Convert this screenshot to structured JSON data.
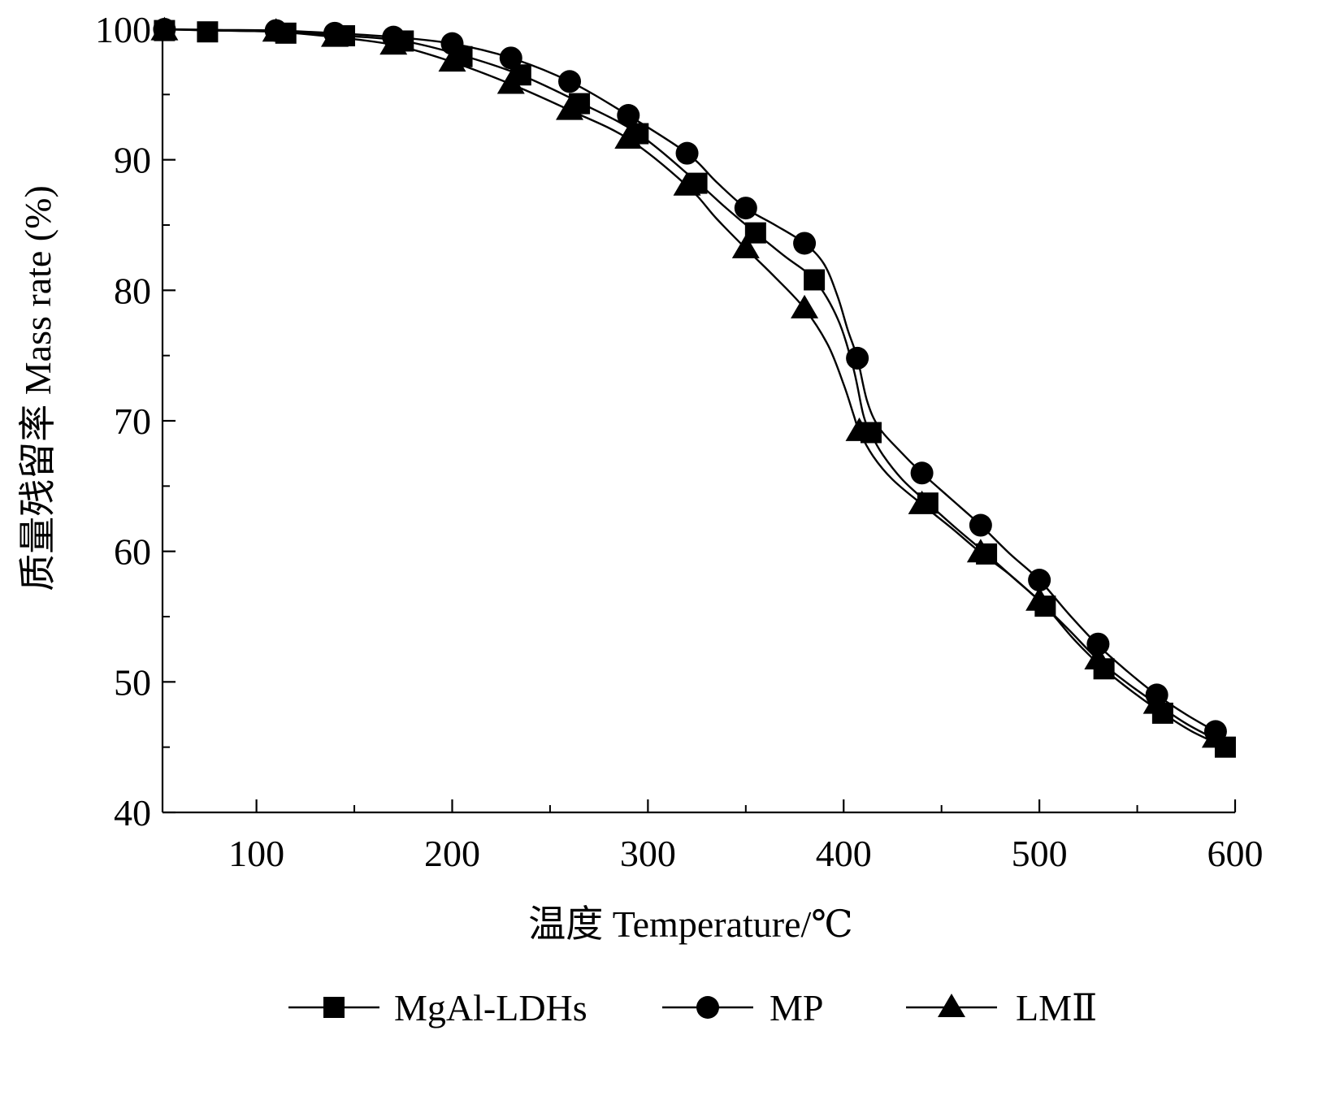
{
  "chart_data": {
    "type": "line",
    "title": "",
    "xlabel": "温度 Temperature/℃",
    "ylabel": "质量残留率 Mass rate (%)",
    "xlim": [
      52,
      600
    ],
    "ylim": [
      40,
      100
    ],
    "x_ticks": [
      100,
      200,
      300,
      400,
      500,
      600
    ],
    "x_tick_labels": [
      "100",
      "200",
      "300",
      "400",
      "500",
      "600"
    ],
    "x_minor_ticks": [
      150,
      250,
      350,
      450,
      550
    ],
    "y_ticks": [
      40,
      50,
      60,
      70,
      80,
      90,
      100
    ],
    "y_tick_labels": [
      "40",
      "50",
      "60",
      "70",
      "80",
      "90",
      "100"
    ],
    "y_minor_ticks": [
      45,
      55,
      65,
      75,
      85,
      95
    ],
    "grid": false,
    "legend_position": "bottom",
    "series": [
      {
        "name": "MgAl-LDHs",
        "marker": "square",
        "color": "#000000",
        "line": [
          [
            52,
            100
          ],
          [
            80,
            99.9
          ],
          [
            115,
            99.8
          ],
          [
            145,
            99.5
          ],
          [
            175,
            99.1
          ],
          [
            205,
            98.0
          ],
          [
            235,
            96.5
          ],
          [
            265,
            94.4
          ],
          [
            295,
            92.0
          ],
          [
            325,
            88.3
          ],
          [
            340,
            86.3
          ],
          [
            355,
            84.4
          ],
          [
            370,
            82.6
          ],
          [
            385,
            80.8
          ],
          [
            397,
            77.8
          ],
          [
            405,
            74.0
          ],
          [
            410,
            70.5
          ],
          [
            414,
            69.0
          ],
          [
            420,
            67.4
          ],
          [
            430,
            65.5
          ],
          [
            443,
            63.7
          ],
          [
            458,
            61.7
          ],
          [
            473,
            59.8
          ],
          [
            488,
            57.8
          ],
          [
            503,
            55.8
          ],
          [
            518,
            53.2
          ],
          [
            533,
            51.0
          ],
          [
            548,
            49.2
          ],
          [
            563,
            47.6
          ],
          [
            578,
            46.2
          ],
          [
            595,
            45.0
          ]
        ],
        "markers": [
          [
            53,
            99.9
          ],
          [
            75,
            99.8
          ],
          [
            115,
            99.7
          ],
          [
            145,
            99.5
          ],
          [
            175,
            99.1
          ],
          [
            205,
            97.9
          ],
          [
            235,
            96.5
          ],
          [
            265,
            94.3
          ],
          [
            295,
            92.0
          ],
          [
            325,
            88.2
          ],
          [
            355,
            84.4
          ],
          [
            385,
            80.8
          ],
          [
            414,
            69.1
          ],
          [
            443,
            63.7
          ],
          [
            473,
            59.8
          ],
          [
            503,
            55.8
          ],
          [
            533,
            51.0
          ],
          [
            563,
            47.6
          ],
          [
            595,
            45.0
          ]
        ]
      },
      {
        "name": "MP",
        "marker": "circle",
        "color": "#000000",
        "line": [
          [
            52,
            100
          ],
          [
            80,
            99.95
          ],
          [
            110,
            99.9
          ],
          [
            140,
            99.7
          ],
          [
            170,
            99.4
          ],
          [
            200,
            98.9
          ],
          [
            230,
            97.8
          ],
          [
            260,
            96.0
          ],
          [
            290,
            93.4
          ],
          [
            320,
            90.5
          ],
          [
            335,
            88.3
          ],
          [
            350,
            86.3
          ],
          [
            365,
            85.0
          ],
          [
            380,
            83.6
          ],
          [
            390,
            82.0
          ],
          [
            397,
            79.5
          ],
          [
            402,
            77.0
          ],
          [
            407,
            74.8
          ],
          [
            412,
            71.5
          ],
          [
            418,
            69.5
          ],
          [
            428,
            67.8
          ],
          [
            440,
            66.0
          ],
          [
            455,
            64.0
          ],
          [
            470,
            62.0
          ],
          [
            485,
            59.8
          ],
          [
            500,
            57.8
          ],
          [
            515,
            55.2
          ],
          [
            530,
            52.8
          ],
          [
            545,
            50.8
          ],
          [
            560,
            49.0
          ],
          [
            575,
            47.5
          ],
          [
            590,
            46.2
          ],
          [
            595,
            45.8
          ]
        ],
        "markers": [
          [
            53,
            100
          ],
          [
            110,
            99.9
          ],
          [
            140,
            99.7
          ],
          [
            170,
            99.4
          ],
          [
            200,
            98.9
          ],
          [
            230,
            97.8
          ],
          [
            260,
            96.0
          ],
          [
            290,
            93.4
          ],
          [
            320,
            90.5
          ],
          [
            350,
            86.3
          ],
          [
            380,
            83.6
          ],
          [
            407,
            74.8
          ],
          [
            440,
            66.0
          ],
          [
            470,
            62.0
          ],
          [
            500,
            57.8
          ],
          [
            530,
            52.9
          ],
          [
            560,
            49.0
          ],
          [
            590,
            46.2
          ]
        ]
      },
      {
        "name": "LMⅡ",
        "marker": "triangle",
        "color": "#000000",
        "line": [
          [
            52,
            100
          ],
          [
            80,
            99.9
          ],
          [
            110,
            99.8
          ],
          [
            140,
            99.4
          ],
          [
            170,
            98.8
          ],
          [
            200,
            97.5
          ],
          [
            230,
            95.8
          ],
          [
            260,
            93.8
          ],
          [
            290,
            91.6
          ],
          [
            320,
            88.0
          ],
          [
            335,
            85.5
          ],
          [
            350,
            83.2
          ],
          [
            365,
            81.0
          ],
          [
            380,
            78.6
          ],
          [
            392,
            75.8
          ],
          [
            400,
            72.8
          ],
          [
            405,
            70.5
          ],
          [
            408,
            69.2
          ],
          [
            415,
            67.3
          ],
          [
            425,
            65.5
          ],
          [
            440,
            63.6
          ],
          [
            455,
            61.8
          ],
          [
            470,
            59.9
          ],
          [
            485,
            58.2
          ],
          [
            500,
            56.2
          ],
          [
            515,
            54.0
          ],
          [
            530,
            51.7
          ],
          [
            545,
            49.9
          ],
          [
            560,
            48.3
          ],
          [
            575,
            46.8
          ],
          [
            590,
            45.6
          ]
        ],
        "markers": [
          [
            53,
            99.9
          ],
          [
            110,
            99.8
          ],
          [
            140,
            99.4
          ],
          [
            170,
            98.8
          ],
          [
            200,
            97.5
          ],
          [
            230,
            95.8
          ],
          [
            260,
            93.8
          ],
          [
            290,
            91.6
          ],
          [
            320,
            88.0
          ],
          [
            350,
            83.2
          ],
          [
            380,
            78.6
          ],
          [
            408,
            69.2
          ],
          [
            440,
            63.6
          ],
          [
            470,
            59.9
          ],
          [
            500,
            56.2
          ],
          [
            530,
            51.7
          ],
          [
            560,
            48.3
          ],
          [
            590,
            45.7
          ]
        ]
      }
    ]
  }
}
